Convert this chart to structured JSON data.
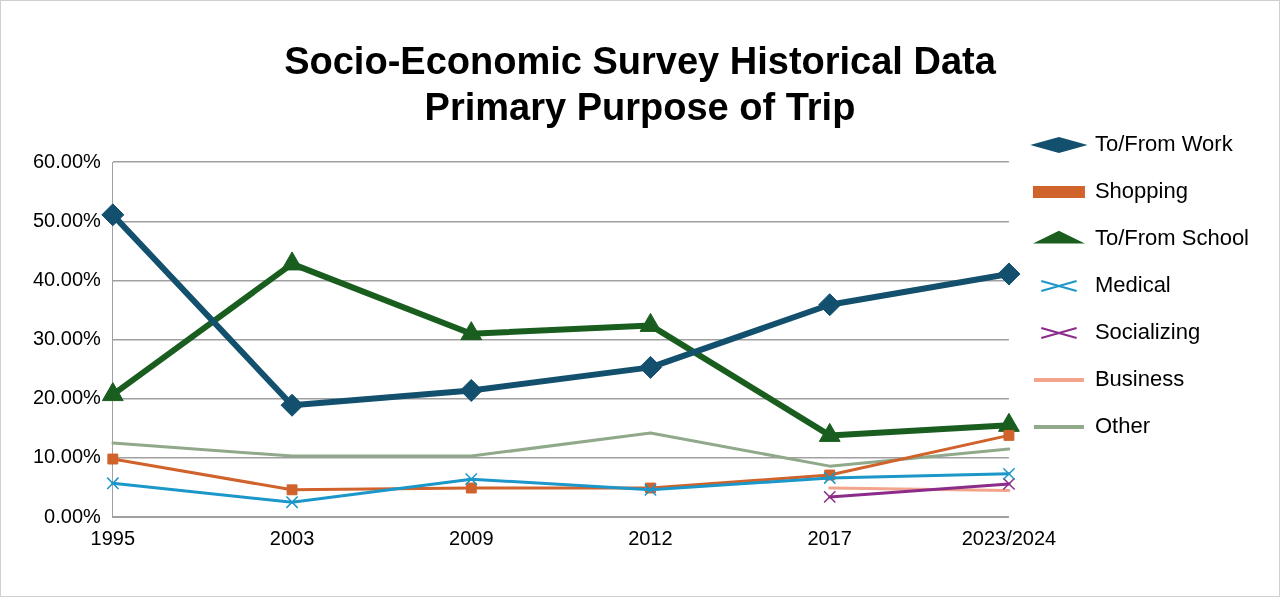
{
  "chart_data": {
    "type": "line",
    "title": [
      "Socio-Economic Survey Historical Data",
      "Primary Purpose of Trip"
    ],
    "categories": [
      "1995",
      "2003",
      "2009",
      "2012",
      "2017",
      "2023/2024"
    ],
    "series": [
      {
        "name": "To/From Work",
        "color": "#13506e",
        "marker": "diamond",
        "values": [
          51.1,
          18.9,
          21.4,
          25.3,
          35.9,
          41.1
        ]
      },
      {
        "name": "Shopping",
        "color": "#d0622b",
        "marker": "square",
        "values": [
          9.8,
          4.6,
          4.9,
          4.9,
          7.1,
          13.8
        ]
      },
      {
        "name": "To/From School",
        "color": "#1a5e1f",
        "marker": "triangle",
        "values": [
          20.7,
          42.8,
          31.0,
          32.4,
          13.8,
          15.5
        ]
      },
      {
        "name": "Medical",
        "color": "#1b97c9",
        "marker": "cross",
        "values": [
          5.7,
          2.5,
          6.4,
          4.6,
          6.6,
          7.3
        ]
      },
      {
        "name": "Socializing",
        "color": "#8b2b8a",
        "marker": "cross",
        "values": [
          null,
          null,
          null,
          null,
          3.4,
          5.6
        ]
      },
      {
        "name": "Business",
        "color": "#f2a58c",
        "marker": "none",
        "values": [
          null,
          null,
          null,
          null,
          4.9,
          4.5
        ]
      },
      {
        "name": "Other",
        "color": "#8fa98a",
        "marker": "none",
        "values": [
          12.5,
          10.3,
          10.3,
          14.2,
          8.6,
          11.5
        ]
      }
    ],
    "ylim": [
      0,
      60
    ],
    "yticks": [
      {
        "value": 0,
        "label": "0.00%"
      },
      {
        "value": 10,
        "label": "10.00%"
      },
      {
        "value": 20,
        "label": "20.00%"
      },
      {
        "value": 30,
        "label": "30.00%"
      },
      {
        "value": 40,
        "label": "40.00%"
      },
      {
        "value": 50,
        "label": "50.00%"
      },
      {
        "value": 60,
        "label": "60.00%"
      }
    ],
    "grid": "y",
    "legend": "right"
  }
}
